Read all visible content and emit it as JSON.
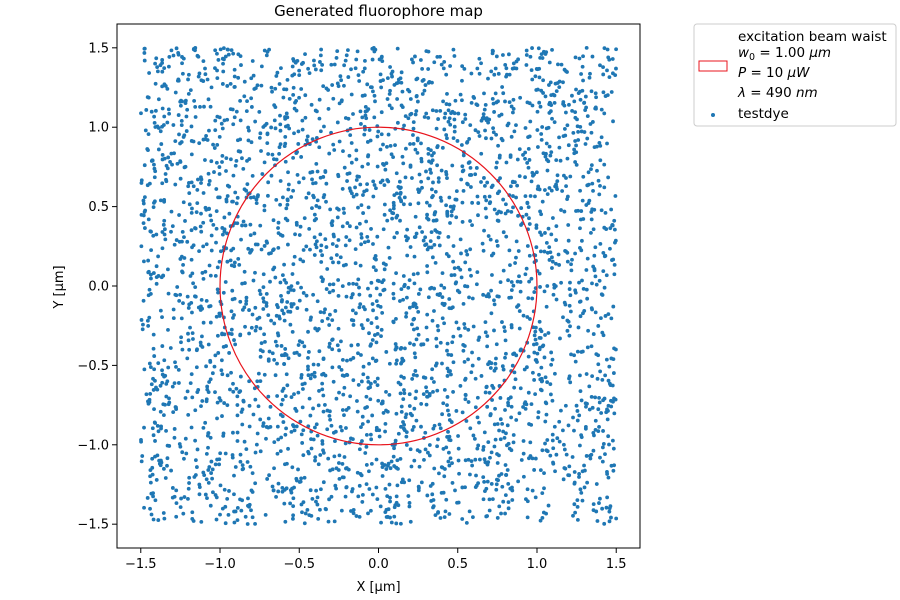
{
  "chart_data": {
    "type": "scatter",
    "title": "Generated fluorophore map",
    "xlabel": "X [μm]",
    "ylabel": "Y [μm]",
    "xlim": [
      -1.65,
      1.65
    ],
    "ylim": [
      -1.65,
      1.65
    ],
    "xticks": [
      -1.5,
      -1.0,
      -0.5,
      0.0,
      0.5,
      1.0,
      1.5
    ],
    "yticks": [
      -1.5,
      -1.0,
      -0.5,
      0.0,
      0.5,
      1.0,
      1.5
    ],
    "xtick_labels": [
      "−1.5",
      "−1.0",
      "−0.5",
      "0.0",
      "0.5",
      "1.0",
      "1.5"
    ],
    "ytick_labels": [
      "−1.5",
      "−1.0",
      "−0.5",
      "0.0",
      "0.5",
      "1.0",
      "1.5"
    ],
    "grid": false,
    "legend_position": "outside-top-right",
    "circle": {
      "name": "excitation beam waist",
      "center": [
        0.0,
        0.0
      ],
      "radius": 1.0,
      "color": "#e8141c"
    },
    "legend": {
      "circle_entry": "excitation beam waist",
      "w0_label": "w",
      "w0_sub": "0",
      "w0_value": " = 1.00 ",
      "w0_unit": "μm",
      "p_label": "P",
      "p_value": " = 10 ",
      "p_unit": "μW",
      "lambda_label": "λ",
      "lambda_value": " = 490 ",
      "lambda_unit": "nm",
      "scatter_entry": "testdye"
    },
    "series": [
      {
        "name": "testdye",
        "color": "#1f77b4",
        "distribution": "uniform",
        "x_range": [
          -1.5,
          1.5
        ],
        "y_range": [
          -1.5,
          1.5
        ],
        "count": 3300,
        "seed": 7
      }
    ]
  }
}
